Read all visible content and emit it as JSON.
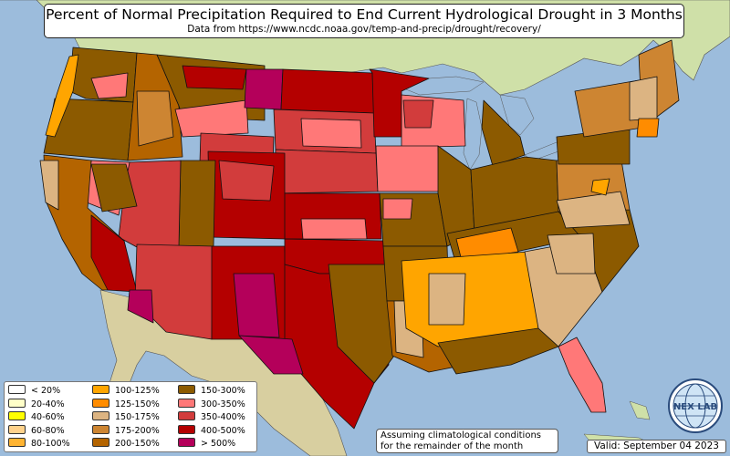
{
  "title": "Percent of Normal Precipitation Required to End Current Hydrological Drought in 3 Months",
  "subtitle": "Data from https://www.ncdc.noaa.gov/temp-and-precip/drought/recovery/",
  "legend": {
    "items": [
      {
        "label": "< 20%",
        "color": "#ffffff"
      },
      {
        "label": "20-40%",
        "color": "#ffffc8"
      },
      {
        "label": "40-60%",
        "color": "#ffff00"
      },
      {
        "label": "60-80%",
        "color": "#ffd28c"
      },
      {
        "label": "80-100%",
        "color": "#ffb432"
      },
      {
        "label": "100-125%",
        "color": "#ffa500"
      },
      {
        "label": "125-150%",
        "color": "#ff8c00"
      },
      {
        "label": "150-175%",
        "color": "#dcb482"
      },
      {
        "label": "175-200%",
        "color": "#cd8532"
      },
      {
        "label": "200-150%",
        "color": "#b46400"
      },
      {
        "label": "150-300%",
        "color": "#8c5a00"
      },
      {
        "label": "300-350%",
        "color": "#ff7878"
      },
      {
        "label": "350-400%",
        "color": "#d23c3c"
      },
      {
        "label": "400-500%",
        "color": "#b40000"
      },
      {
        "label": "> 500%",
        "color": "#b4005a"
      }
    ]
  },
  "note": {
    "line1": "Assuming climatological conditions",
    "line2": "for the remainder of the month"
  },
  "valid": "Valid: September 04 2023",
  "logo": {
    "text": "NEX LAB",
    "icon": "globe-icon"
  },
  "colors": {
    "ocean": "#9cbcdc",
    "land": "#cfe0a8",
    "border": "#111111"
  }
}
